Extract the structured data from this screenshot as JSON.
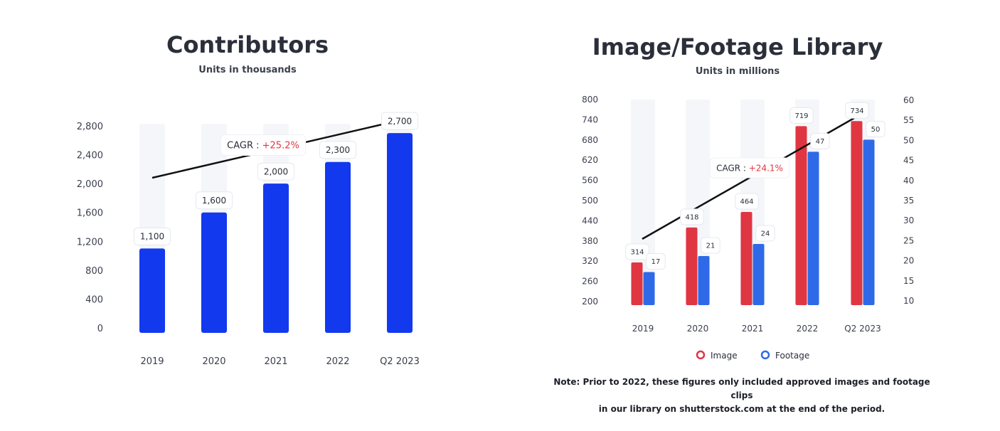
{
  "colors": {
    "contributors_bar": "#1239ee",
    "image_bar": "#e03642",
    "footage_bar": "#2e6ae8",
    "bar_background": "#f5f6fa",
    "cagr_positive": "#e03642",
    "text": "#2b2f3a"
  },
  "left": {
    "title": "Contributors",
    "subtitle": "Units in thousands",
    "cagr_label": "CAGR : ",
    "cagr_value": "+25.2%"
  },
  "right": {
    "title": "Image/Footage Library",
    "subtitle": "Units in millions",
    "cagr_label": "CAGR : ",
    "cagr_value": "+24.1%",
    "legend": [
      "Image",
      "Footage"
    ],
    "note_line1": "Note: Prior to 2022, these figures only included approved images and footage clips",
    "note_line2": "in our library on shutterstock.com at the end of the period."
  },
  "chart_data": [
    {
      "type": "bar",
      "title": "Contributors",
      "subtitle": "Units in thousands",
      "categories": [
        "2019",
        "2020",
        "2021",
        "2022",
        "Q2 2023"
      ],
      "series": [
        {
          "values": [
            1100,
            1600,
            2000,
            2300,
            2700
          ],
          "labels": [
            "1,100",
            "1,600",
            "2,000",
            "2,300",
            "2,700"
          ]
        }
      ],
      "ylim": [
        0,
        2800
      ],
      "yticks": [
        0,
        400,
        800,
        1200,
        1600,
        2000,
        2400,
        2800
      ],
      "ytick_labels": [
        "0",
        "400",
        "800",
        "1,200",
        "1,600",
        "2,000",
        "2,400",
        "2,800"
      ],
      "annotation": "CAGR : +25.2%",
      "trend_line": true,
      "grid": false
    },
    {
      "type": "bar",
      "title": "Image/Footage Library",
      "subtitle": "Units in millions",
      "categories": [
        "2019",
        "2020",
        "2021",
        "2022",
        "Q2 2023"
      ],
      "series": [
        {
          "name": "Image",
          "axis": "left",
          "values": [
            314,
            418,
            464,
            719,
            734
          ],
          "labels": [
            "314",
            "418",
            "464",
            "719",
            "734"
          ]
        },
        {
          "name": "Footage",
          "axis": "right",
          "values": [
            17,
            21,
            24,
            47,
            50
          ],
          "labels": [
            "17",
            "21",
            "24",
            "47",
            "50"
          ]
        }
      ],
      "ylim_left": [
        200,
        800
      ],
      "yticks_left": [
        200,
        260,
        320,
        380,
        440,
        500,
        560,
        620,
        680,
        740,
        800
      ],
      "ylim_right": [
        10,
        60
      ],
      "yticks_right": [
        10,
        15,
        20,
        25,
        30,
        35,
        40,
        45,
        50,
        55,
        60
      ],
      "annotation": "CAGR : +24.1%",
      "legend_position": "bottom",
      "trend_line": true,
      "grid": false
    }
  ]
}
